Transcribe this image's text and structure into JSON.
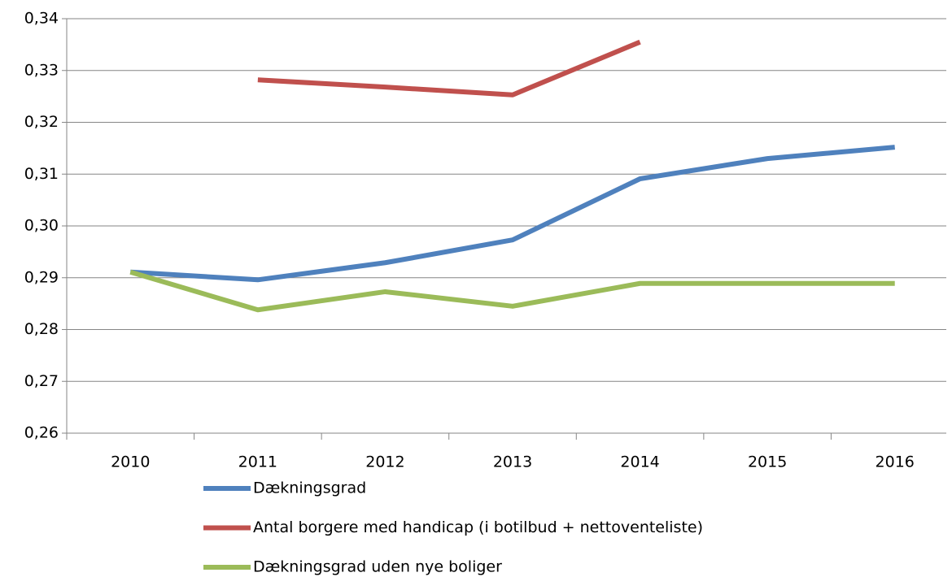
{
  "chart_data": {
    "type": "line",
    "categories": [
      "2010",
      "2011",
      "2012",
      "2013",
      "2014",
      "2015",
      "2016"
    ],
    "series": [
      {
        "name": "Dækningsgrad",
        "color": "#4f81bd",
        "values": [
          0.2911,
          0.2896,
          0.2929,
          0.2973,
          0.3091,
          0.313,
          0.3152
        ]
      },
      {
        "name": "Antal borgere med handicap (i botilbud + nettoventeliste)",
        "color": "#c0504d",
        "values": [
          null,
          0.3282,
          0.3268,
          0.3253,
          0.3355,
          null,
          null
        ]
      },
      {
        "name": "Dækningsgrad uden nye boliger",
        "color": "#9bbb59",
        "values": [
          0.2911,
          0.2838,
          0.2873,
          0.2845,
          0.2889,
          0.2889,
          0.2889
        ]
      }
    ],
    "ylim": [
      0.26,
      0.34
    ],
    "yticks": [
      {
        "value": 0.26,
        "label": "0,26"
      },
      {
        "value": 0.27,
        "label": "0,27"
      },
      {
        "value": 0.28,
        "label": "0,28"
      },
      {
        "value": 0.29,
        "label": "0,29"
      },
      {
        "value": 0.3,
        "label": "0,30"
      },
      {
        "value": 0.31,
        "label": "0,31"
      },
      {
        "value": 0.32,
        "label": "0,32"
      },
      {
        "value": 0.33,
        "label": "0,33"
      },
      {
        "value": 0.34,
        "label": "0,34"
      }
    ],
    "grid": true,
    "legend": "bottom"
  }
}
